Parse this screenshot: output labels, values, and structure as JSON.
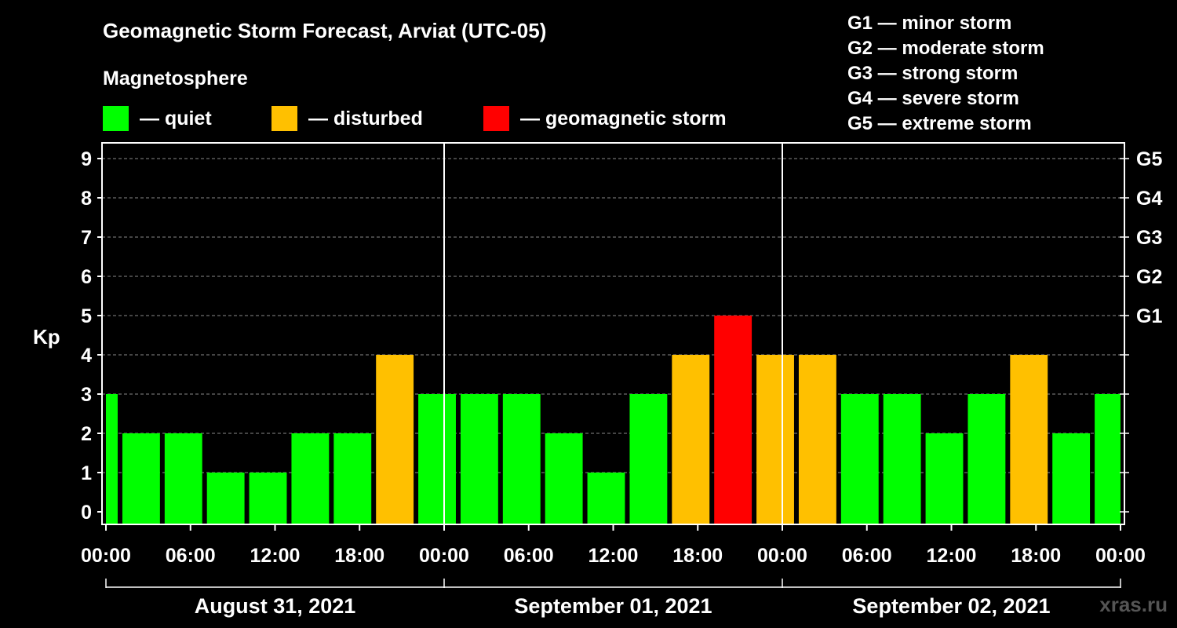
{
  "header": {
    "title": "Geomagnetic Storm Forecast, Arviat (UTC-05)",
    "magnetosphere_label": "Magnetosphere"
  },
  "legend": [
    {
      "label": "— quiet",
      "color": "#00ff00"
    },
    {
      "label": "— disturbed",
      "color": "#ffc000"
    },
    {
      "label": "— geomagnetic storm",
      "color": "#ff0000"
    }
  ],
  "storm_levels": [
    "G1 — minor storm",
    "G2 — moderate storm",
    "G3 — strong storm",
    "G4 — severe storm",
    "G5 — extreme storm"
  ],
  "watermark": "xras.ru",
  "chart_data": {
    "type": "bar",
    "ylabel": "Kp",
    "ylim": [
      0,
      9
    ],
    "yticks": [
      "0",
      "1",
      "2",
      "3",
      "4",
      "5",
      "6",
      "7",
      "8",
      "9"
    ],
    "right_ticks": [
      {
        "kp": 5,
        "label": "G1"
      },
      {
        "kp": 6,
        "label": "G2"
      },
      {
        "kp": 7,
        "label": "G3"
      },
      {
        "kp": 8,
        "label": "G4"
      },
      {
        "kp": 9,
        "label": "G5"
      }
    ],
    "x_hours_range": [
      0,
      72
    ],
    "x_ticks": [
      "00:00",
      "06:00",
      "12:00",
      "18:00",
      "00:00",
      "06:00",
      "12:00",
      "18:00",
      "00:00",
      "06:00",
      "12:00",
      "18:00",
      "00:00"
    ],
    "days": [
      "August 31, 2021",
      "September 01, 2021",
      "September 02, 2021"
    ],
    "grid": true,
    "bars": [
      {
        "start": 0,
        "end": 1,
        "kp": 3,
        "status": "quiet"
      },
      {
        "start": 1,
        "end": 4,
        "kp": 2,
        "status": "quiet"
      },
      {
        "start": 4,
        "end": 7,
        "kp": 2,
        "status": "quiet"
      },
      {
        "start": 7,
        "end": 10,
        "kp": 1,
        "status": "quiet"
      },
      {
        "start": 10,
        "end": 13,
        "kp": 1,
        "status": "quiet"
      },
      {
        "start": 13,
        "end": 16,
        "kp": 2,
        "status": "quiet"
      },
      {
        "start": 16,
        "end": 19,
        "kp": 2,
        "status": "quiet"
      },
      {
        "start": 19,
        "end": 22,
        "kp": 4,
        "status": "disturbed"
      },
      {
        "start": 22,
        "end": 25,
        "kp": 3,
        "status": "quiet"
      },
      {
        "start": 25,
        "end": 28,
        "kp": 3,
        "status": "quiet"
      },
      {
        "start": 28,
        "end": 31,
        "kp": 3,
        "status": "quiet"
      },
      {
        "start": 31,
        "end": 34,
        "kp": 2,
        "status": "quiet"
      },
      {
        "start": 34,
        "end": 37,
        "kp": 1,
        "status": "quiet"
      },
      {
        "start": 37,
        "end": 40,
        "kp": 3,
        "status": "quiet"
      },
      {
        "start": 40,
        "end": 43,
        "kp": 4,
        "status": "disturbed"
      },
      {
        "start": 43,
        "end": 46,
        "kp": 5,
        "status": "storm"
      },
      {
        "start": 46,
        "end": 49,
        "kp": 4,
        "status": "disturbed"
      },
      {
        "start": 49,
        "end": 52,
        "kp": 4,
        "status": "disturbed"
      },
      {
        "start": 52,
        "end": 55,
        "kp": 3,
        "status": "quiet"
      },
      {
        "start": 55,
        "end": 58,
        "kp": 3,
        "status": "quiet"
      },
      {
        "start": 58,
        "end": 61,
        "kp": 2,
        "status": "quiet"
      },
      {
        "start": 61,
        "end": 64,
        "kp": 3,
        "status": "quiet"
      },
      {
        "start": 64,
        "end": 67,
        "kp": 4,
        "status": "disturbed"
      },
      {
        "start": 67,
        "end": 70,
        "kp": 2,
        "status": "quiet"
      },
      {
        "start": 70,
        "end": 72,
        "kp": 3,
        "status": "quiet"
      }
    ],
    "colors": {
      "quiet": "#00ff00",
      "disturbed": "#ffc000",
      "storm": "#ff0000"
    }
  }
}
